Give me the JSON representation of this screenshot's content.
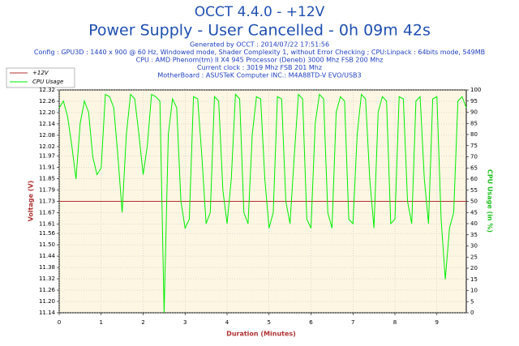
{
  "chart_data": {
    "type": "line",
    "title": "OCCT 4.4.0 - +12V",
    "subtitle": "Power Supply - User Cancelled - 0h 09m 42s",
    "info": [
      "Generated by OCCT : 2014/07/22 17:51:56",
      "Config : GPU3D : 1440 x 900 @ 60 Hz, Windowed mode, Shader Complexity 1, without Error Checking ; CPU:Linpack : 64bits mode, 549MB",
      "CPU : AMD Phenom(tm) II X4 945 Processor (Deneb) 3000 Mhz FSB 200 Mhz",
      "Current clock : 3019 Mhz FSB 201 Mhz",
      "MotherBoard : ASUSTeK Computer INC.: M4A88TD-V EVO/USB3"
    ],
    "x_label": "Duration (Minutes)",
    "y_label": "Voltage (V)",
    "y2_label": "CPU Usage (in %)",
    "legend": "upper left",
    "grid": true,
    "xlim": [
      0,
      9.7
    ],
    "xticks": [
      0,
      1,
      2,
      3,
      4,
      5,
      6,
      7,
      8,
      9
    ],
    "ylim": [
      11.14,
      12.32
    ],
    "yticks": [
      11.14,
      {
        "value": 11.2,
        "label": "11.20"
      },
      11.26,
      11.32,
      11.38,
      11.44,
      {
        "value": 11.5,
        "label": "11.50"
      },
      11.56,
      11.61,
      11.67,
      11.73,
      11.79,
      11.85,
      11.91,
      11.97,
      12.02,
      12.08,
      12.14,
      {
        "value": 12.2,
        "label": "12.20"
      },
      12.26,
      12.32
    ],
    "y2lim": [
      0,
      100
    ],
    "y2ticks": [
      0,
      5,
      10,
      15,
      20,
      25,
      30,
      35,
      40,
      45,
      50,
      55,
      60,
      65,
      70,
      75,
      80,
      85,
      90,
      95,
      100
    ],
    "x": [
      0,
      0.1,
      0.2,
      0.3,
      0.4,
      0.5,
      0.6,
      0.7,
      0.8,
      0.9,
      1,
      1.1,
      1.2,
      1.3,
      1.4,
      1.5,
      1.6,
      1.7,
      1.8,
      1.9,
      2,
      2.1,
      2.2,
      2.3,
      2.4,
      2.5,
      2.6,
      2.7,
      2.8,
      2.9,
      3,
      3.1,
      3.2,
      3.3,
      3.4,
      3.5,
      3.6,
      3.7,
      3.8,
      3.9,
      4,
      4.1,
      4.2,
      4.3,
      4.4,
      4.5,
      4.6,
      4.7,
      4.8,
      4.9,
      5,
      5.1,
      5.2,
      5.3,
      5.4,
      5.5,
      5.6,
      5.7,
      5.8,
      5.9,
      6,
      6.1,
      6.2,
      6.3,
      6.4,
      6.5,
      6.6,
      6.7,
      6.8,
      6.9,
      7,
      7.1,
      7.2,
      7.3,
      7.4,
      7.5,
      7.6,
      7.7,
      7.8,
      7.9,
      8,
      8.1,
      8.2,
      8.3,
      8.4,
      8.5,
      8.6,
      8.7,
      8.8,
      8.9,
      9,
      9.1,
      9.2,
      9.3,
      9.4,
      9.5,
      9.6,
      9.7
    ],
    "series": [
      {
        "name": "+12V",
        "color": "#b03030",
        "values": [
          11.73,
          11.73,
          11.73,
          11.73,
          11.73,
          11.73,
          11.73,
          11.73,
          11.73,
          11.73,
          11.73,
          11.73,
          11.73,
          11.73,
          11.73,
          11.73,
          11.73,
          11.73,
          11.73,
          11.73,
          11.73,
          11.73,
          11.73,
          11.73,
          11.73,
          11.73,
          11.73,
          11.73,
          11.73,
          11.73,
          11.73,
          11.73,
          11.73,
          11.73,
          11.73,
          11.73,
          11.73,
          11.73,
          11.73,
          11.73,
          11.73,
          11.73,
          11.73,
          11.73,
          11.73,
          11.73,
          11.73,
          11.73,
          11.73,
          11.73,
          11.73,
          11.73,
          11.73,
          11.73,
          11.73,
          11.73,
          11.73,
          11.73,
          11.73,
          11.73,
          11.73,
          11.73,
          11.73,
          11.73,
          11.73,
          11.73,
          11.73,
          11.73,
          11.73,
          11.73,
          11.73,
          11.73,
          11.73,
          11.73,
          11.73,
          11.73,
          11.73,
          11.73,
          11.73,
          11.73,
          11.73,
          11.73,
          11.73,
          11.73,
          11.73,
          11.73,
          11.73,
          11.73,
          11.73,
          11.73,
          11.73,
          11.73,
          11.73,
          11.73,
          11.73,
          11.73,
          11.73,
          11.73
        ]
      },
      {
        "name": "CPU Usage",
        "color": "#00ee00",
        "axis": "y2",
        "values": [
          92,
          95,
          88,
          75,
          60,
          85,
          95,
          90,
          70,
          62,
          65,
          98,
          97,
          92,
          70,
          45,
          80,
          98,
          96,
          80,
          62,
          75,
          98,
          97,
          95,
          0,
          80,
          96,
          92,
          50,
          38,
          42,
          97,
          96,
          70,
          40,
          45,
          97,
          95,
          55,
          40,
          60,
          98,
          96,
          45,
          40,
          80,
          97,
          96,
          60,
          38,
          45,
          97,
          96,
          50,
          40,
          70,
          98,
          96,
          42,
          38,
          85,
          98,
          96,
          45,
          38,
          90,
          97,
          95,
          42,
          40,
          80,
          98,
          96,
          60,
          38,
          90,
          97,
          95,
          40,
          42,
          97,
          96,
          50,
          40,
          95,
          97,
          60,
          40,
          96,
          97,
          42,
          15,
          38,
          45,
          95,
          97,
          92
        ]
      }
    ]
  }
}
